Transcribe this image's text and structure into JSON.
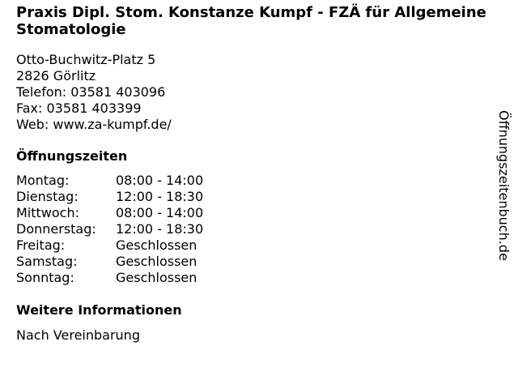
{
  "title": "Praxis Dipl. Stom. Konstanze Kumpf - FZÄ für Allgemeine Stomatologie",
  "address": {
    "street": "Otto-Buchwitz-Platz 5",
    "city": "2826 Görlitz",
    "phone": "Telefon: 03581 403096",
    "fax": "Fax: 03581 403399",
    "web": "Web: www.za-kumpf.de/"
  },
  "hours_heading": "Öffnungszeiten",
  "hours": [
    {
      "day": "Montag:",
      "time": "08:00 - 14:00"
    },
    {
      "day": "Dienstag:",
      "time": "12:00 - 18:30"
    },
    {
      "day": "Mittwoch:",
      "time": "08:00 - 14:00"
    },
    {
      "day": "Donnerstag:",
      "time": "12:00 - 18:30"
    },
    {
      "day": "Freitag:",
      "time": "Geschlossen"
    },
    {
      "day": "Samstag:",
      "time": "Geschlossen"
    },
    {
      "day": "Sonntag:",
      "time": "Geschlossen"
    }
  ],
  "info_heading": "Weitere Informationen",
  "info_text": "Nach Vereinbarung",
  "watermark": "Öffnungszeitenbuch.de"
}
